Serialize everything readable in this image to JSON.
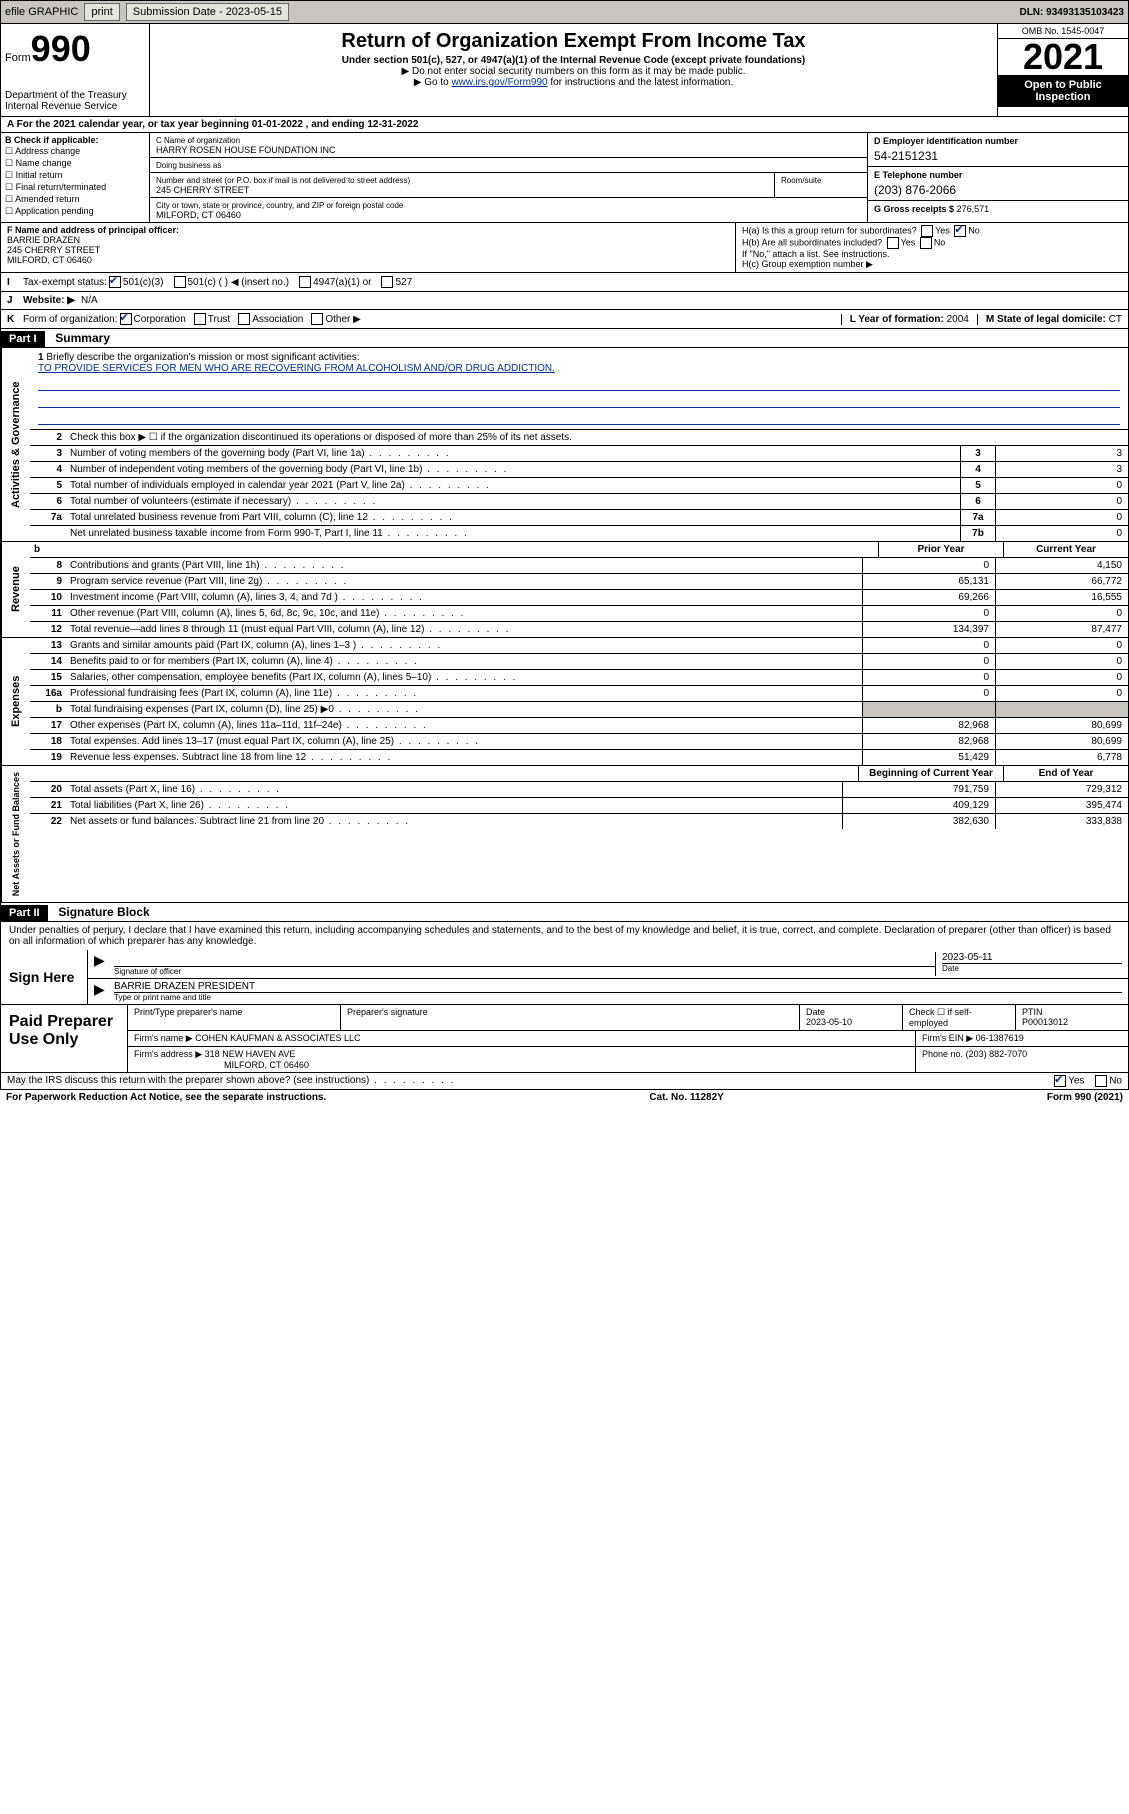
{
  "topbar": {
    "efile": "efile GRAPHIC",
    "print": "print",
    "submission_label": "Submission Date - 2023-05-15",
    "dln": "DLN: 93493135103423"
  },
  "header": {
    "form_prefix": "Form",
    "form_num": "990",
    "title": "Return of Organization Exempt From Income Tax",
    "subtitle": "Under section 501(c), 527, or 4947(a)(1) of the Internal Revenue Code (except private foundations)",
    "note1": "▶ Do not enter social security numbers on this form as it may be made public.",
    "note2_pre": "▶ Go to ",
    "note2_link": "www.irs.gov/Form990",
    "note2_post": " for instructions and the latest information.",
    "dept": "Department of the Treasury\nInternal Revenue Service",
    "omb": "OMB No. 1545-0047",
    "year": "2021",
    "open_public": "Open to Public Inspection"
  },
  "row_a": "A For the 2021 calendar year, or tax year beginning 01-01-2022   , and ending 12-31-2022",
  "col_b": {
    "title": "B Check if applicable:",
    "opts": [
      "Address change",
      "Name change",
      "Initial return",
      "Final return/terminated",
      "Amended return",
      "Application pending"
    ]
  },
  "col_c": {
    "name_label": "C Name of organization",
    "name": "HARRY ROSEN HOUSE FOUNDATION INC",
    "dba_label": "Doing business as",
    "dba": "",
    "street_label": "Number and street (or P.O. box if mail is not delivered to street address)",
    "street": "245 CHERRY STREET",
    "room_label": "Room/suite",
    "room": "",
    "city_label": "City or town, state or province, country, and ZIP or foreign postal code",
    "city": "MILFORD, CT  06460"
  },
  "col_d": {
    "ein_label": "D Employer identification number",
    "ein": "54-2151231",
    "phone_label": "E Telephone number",
    "phone": "(203) 876-2066",
    "gross_label": "G Gross receipts $",
    "gross": "276,571"
  },
  "row_f": {
    "label": "F Name and address of principal officer:",
    "name": "BARRIE DRAZEN",
    "street": "245 CHERRY STREET",
    "city": "MILFORD, CT  06460"
  },
  "row_h": {
    "ha_label": "H(a)  Is this a group return for subordinates?",
    "ha_yes": "Yes",
    "ha_no": "No",
    "hb_label": "H(b)  Are all subordinates included?",
    "hb_yes": "Yes",
    "hb_no": "No",
    "hb_note": "If \"No,\" attach a list. See instructions.",
    "hc_label": "H(c)  Group exemption number ▶"
  },
  "row_i": {
    "lead": "I",
    "label": "Tax-exempt status:",
    "opt1": "501(c)(3)",
    "opt2": "501(c) (   ) ◀ (insert no.)",
    "opt3": "4947(a)(1) or",
    "opt4": "527"
  },
  "row_j": {
    "lead": "J",
    "label": "Website: ▶",
    "val": "N/A"
  },
  "row_k": {
    "lead": "K",
    "label": "Form of organization:",
    "opts": [
      "Corporation",
      "Trust",
      "Association",
      "Other ▶"
    ]
  },
  "row_lm": {
    "l_label": "L Year of formation:",
    "l_val": "2004",
    "m_label": "M State of legal domicile:",
    "m_val": "CT"
  },
  "part1": {
    "hdr": "Part I",
    "title": "Summary"
  },
  "mission": {
    "lead": "1",
    "label": "Briefly describe the organization's mission or most significant activities:",
    "text": "TO PROVIDE SERVICES FOR MEN WHO ARE RECOVERING FROM ALCOHOLISM AND/OR DRUG ADDICTION."
  },
  "line2": "Check this box ▶ ☐  if the organization discontinued its operations or disposed of more than 25% of its net assets.",
  "gov_lines": [
    {
      "num": "3",
      "desc": "Number of voting members of the governing body (Part VI, line 1a)",
      "box": "3",
      "val": "3"
    },
    {
      "num": "4",
      "desc": "Number of independent voting members of the governing body (Part VI, line 1b)",
      "box": "4",
      "val": "3"
    },
    {
      "num": "5",
      "desc": "Total number of individuals employed in calendar year 2021 (Part V, line 2a)",
      "box": "5",
      "val": "0"
    },
    {
      "num": "6",
      "desc": "Total number of volunteers (estimate if necessary)",
      "box": "6",
      "val": "0"
    },
    {
      "num": "7a",
      "desc": "Total unrelated business revenue from Part VIII, column (C), line 12",
      "box": "7a",
      "val": "0"
    },
    {
      "num": " ",
      "desc": "Net unrelated business taxable income from Form 990-T, Part I, line 11",
      "box": "7b",
      "val": "0"
    }
  ],
  "year_hdr": {
    "b": "b",
    "prior": "Prior Year",
    "current": "Current Year"
  },
  "revenue_lines": [
    {
      "num": "8",
      "desc": "Contributions and grants (Part VIII, line 1h)",
      "prior": "0",
      "cur": "4,150"
    },
    {
      "num": "9",
      "desc": "Program service revenue (Part VIII, line 2g)",
      "prior": "65,131",
      "cur": "66,772"
    },
    {
      "num": "10",
      "desc": "Investment income (Part VIII, column (A), lines 3, 4, and 7d )",
      "prior": "69,266",
      "cur": "16,555"
    },
    {
      "num": "11",
      "desc": "Other revenue (Part VIII, column (A), lines 5, 6d, 8c, 9c, 10c, and 11e)",
      "prior": "0",
      "cur": "0"
    },
    {
      "num": "12",
      "desc": "Total revenue—add lines 8 through 11 (must equal Part VIII, column (A), line 12)",
      "prior": "134,397",
      "cur": "87,477"
    }
  ],
  "expense_lines": [
    {
      "num": "13",
      "desc": "Grants and similar amounts paid (Part IX, column (A), lines 1–3 )",
      "prior": "0",
      "cur": "0"
    },
    {
      "num": "14",
      "desc": "Benefits paid to or for members (Part IX, column (A), line 4)",
      "prior": "0",
      "cur": "0"
    },
    {
      "num": "15",
      "desc": "Salaries, other compensation, employee benefits (Part IX, column (A), lines 5–10)",
      "prior": "0",
      "cur": "0"
    },
    {
      "num": "16a",
      "desc": "Professional fundraising fees (Part IX, column (A), line 11e)",
      "prior": "0",
      "cur": "0"
    },
    {
      "num": "b",
      "desc": "Total fundraising expenses (Part IX, column (D), line 25) ▶0",
      "prior": "",
      "cur": "",
      "shaded": true
    },
    {
      "num": "17",
      "desc": "Other expenses (Part IX, column (A), lines 11a–11d, 11f–24e)",
      "prior": "82,968",
      "cur": "80,699"
    },
    {
      "num": "18",
      "desc": "Total expenses. Add lines 13–17 (must equal Part IX, column (A), line 25)",
      "prior": "82,968",
      "cur": "80,699"
    },
    {
      "num": "19",
      "desc": "Revenue less expenses. Subtract line 18 from line 12",
      "prior": "51,429",
      "cur": "6,778"
    }
  ],
  "net_hdr": {
    "begin": "Beginning of Current Year",
    "end": "End of Year"
  },
  "net_lines": [
    {
      "num": "20",
      "desc": "Total assets (Part X, line 16)",
      "prior": "791,759",
      "cur": "729,312"
    },
    {
      "num": "21",
      "desc": "Total liabilities (Part X, line 26)",
      "prior": "409,129",
      "cur": "395,474"
    },
    {
      "num": "22",
      "desc": "Net assets or fund balances. Subtract line 21 from line 20",
      "prior": "382,630",
      "cur": "333,838"
    }
  ],
  "side_labels": {
    "gov": "Activities & Governance",
    "rev": "Revenue",
    "exp": "Expenses",
    "net": "Net Assets or Fund Balances"
  },
  "part2": {
    "hdr": "Part II",
    "title": "Signature Block"
  },
  "sig": {
    "decl": "Under penalties of perjury, I declare that I have examined this return, including accompanying schedules and statements, and to the best of my knowledge and belief, it is true, correct, and complete. Declaration of preparer (other than officer) is based on all information of which preparer has any knowledge.",
    "sign_here": "Sign Here",
    "sig_of_officer": "Signature of officer",
    "date": "2023-05-11",
    "date_label": "Date",
    "name_title": "BARRIE DRAZEN  PRESIDENT",
    "type_label": "Type or print name and title"
  },
  "prep": {
    "label": "Paid Preparer Use Only",
    "h_name": "Print/Type preparer's name",
    "h_sig": "Preparer's signature",
    "h_date": "Date",
    "date": "2023-05-10",
    "h_check": "Check ☐ if self-employed",
    "h_ptin": "PTIN",
    "ptin": "P00013012",
    "firm_name_label": "Firm's name    ▶",
    "firm_name": "COHEN KAUFMAN & ASSOCIATES LLC",
    "firm_ein_label": "Firm's EIN ▶",
    "firm_ein": "06-1387619",
    "firm_addr_label": "Firm's address ▶",
    "firm_addr": "318 NEW HAVEN AVE",
    "firm_city": "MILFORD, CT  06460",
    "phone_label": "Phone no.",
    "phone": "(203) 882-7070"
  },
  "may_irs": {
    "text": "May the IRS discuss this return with the preparer shown above? (see instructions)",
    "yes": "Yes",
    "no": "No"
  },
  "footer": {
    "pra": "For Paperwork Reduction Act Notice, see the separate instructions.",
    "cat": "Cat. No. 11282Y",
    "form": "Form 990 (2021)"
  },
  "colors": {
    "link": "#003399",
    "shaded": "#c8c5c0"
  }
}
